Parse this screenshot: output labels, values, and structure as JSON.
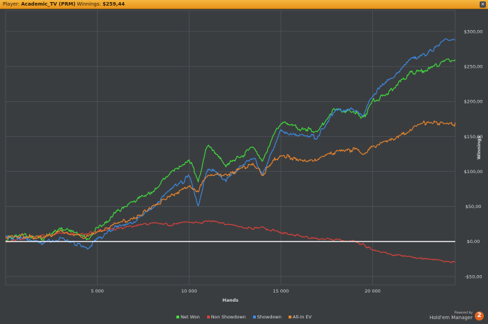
{
  "header": {
    "player_label": "Player:",
    "player_name": "Academic_TV (PRM)",
    "winnings_label": "Winnings:",
    "winnings_value": "$259,44",
    "close_icon": "close-icon"
  },
  "branding": {
    "powered_by": "Powered by",
    "product": "Hold'em Manager",
    "badge": "2"
  },
  "colors": {
    "background": "#3a3d40",
    "grid": "#52575c",
    "zero_line": "#ffffff",
    "net_won": "#3fe23c",
    "non_showdown": "#e2423a",
    "showdown": "#3c8de8",
    "all_in_ev": "#f0872a"
  },
  "chart_data": {
    "type": "line",
    "xlabel": "Hands",
    "ylabel": "Winnings",
    "xlim": [
      0,
      24500
    ],
    "ylim": [
      -62,
      330
    ],
    "xticks": [
      5000,
      10000,
      15000,
      20000
    ],
    "xtick_labels": [
      "5 000",
      "10 000",
      "15 000",
      "20 000"
    ],
    "yticks": [
      -50,
      0,
      50,
      100,
      150,
      200,
      250,
      300
    ],
    "ytick_labels": [
      "-$50,00",
      "$0,00",
      "$50,00",
      "$100,00",
      "$150,00",
      "$200,00",
      "$250,00",
      "$300,00"
    ],
    "grid": true,
    "legend_position": "bottom",
    "x": [
      0,
      1000,
      2000,
      3000,
      4000,
      4500,
      5000,
      6000,
      7000,
      8000,
      9000,
      10000,
      10500,
      11000,
      12000,
      13000,
      13500,
      14000,
      14500,
      15000,
      16000,
      17000,
      18000,
      19000,
      19500,
      20000,
      21000,
      22000,
      23000,
      24000,
      24500
    ],
    "series": [
      {
        "name": "Net Won",
        "color_key": "net_won",
        "values": [
          5,
          10,
          3,
          18,
          12,
          5,
          18,
          40,
          58,
          72,
          98,
          118,
          88,
          140,
          110,
          125,
          138,
          115,
          145,
          170,
          162,
          158,
          190,
          185,
          175,
          200,
          215,
          240,
          245,
          258,
          257
        ]
      },
      {
        "name": "Non Showdown",
        "color_key": "non_showdown",
        "values": [
          0,
          5,
          8,
          12,
          10,
          12,
          15,
          18,
          22,
          26,
          24,
          28,
          26,
          30,
          25,
          20,
          18,
          20,
          16,
          13,
          8,
          4,
          2,
          0,
          -5,
          -12,
          -18,
          -22,
          -25,
          -28,
          -30
        ]
      },
      {
        "name": "Showdown",
        "color_key": "showdown",
        "values": [
          5,
          6,
          -3,
          4,
          -5,
          -10,
          4,
          20,
          28,
          48,
          75,
          92,
          52,
          105,
          88,
          112,
          120,
          96,
          128,
          158,
          150,
          150,
          188,
          188,
          180,
          210,
          232,
          258,
          268,
          288,
          287
        ]
      },
      {
        "name": "All-In EV",
        "color_key": "all_in_ev",
        "values": [
          5,
          8,
          5,
          14,
          8,
          6,
          12,
          25,
          32,
          48,
          66,
          78,
          72,
          95,
          95,
          105,
          110,
          94,
          112,
          125,
          115,
          118,
          128,
          132,
          125,
          135,
          145,
          158,
          172,
          168,
          167
        ]
      }
    ]
  }
}
